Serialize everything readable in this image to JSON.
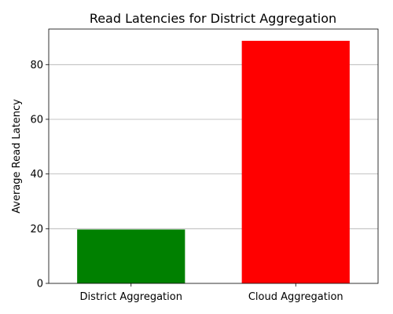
{
  "chart_data": {
    "type": "bar",
    "title": "Read Latencies for District Aggregation",
    "xlabel": "",
    "ylabel": "Average Read Latency",
    "categories": [
      "District Aggregation",
      "Cloud Aggregation"
    ],
    "values": [
      19.7,
      88.7
    ],
    "colors": [
      "#008000",
      "#ff0000"
    ],
    "ylim": [
      0,
      93
    ],
    "yticks": [
      0,
      20,
      40,
      60,
      80
    ],
    "grid": "y"
  }
}
